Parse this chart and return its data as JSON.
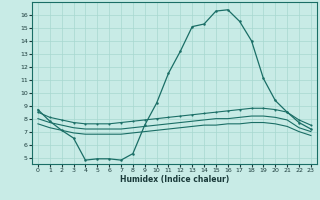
{
  "xlabel": "Humidex (Indice chaleur)",
  "background_color": "#c8ebe6",
  "grid_color": "#a8d8d0",
  "line_color": "#1a6e66",
  "xlim": [
    -0.5,
    23.5
  ],
  "ylim": [
    4.5,
    17.0
  ],
  "xticks": [
    0,
    1,
    2,
    3,
    4,
    5,
    6,
    7,
    8,
    9,
    10,
    11,
    12,
    13,
    14,
    15,
    16,
    17,
    18,
    19,
    20,
    21,
    22,
    23
  ],
  "yticks": [
    5,
    6,
    7,
    8,
    9,
    10,
    11,
    12,
    13,
    14,
    15,
    16
  ],
  "line1_x": [
    0,
    1,
    2,
    3,
    4,
    5,
    6,
    7,
    8,
    9,
    10,
    11,
    12,
    13,
    14,
    15,
    16,
    17,
    18,
    19,
    20,
    21,
    22,
    23
  ],
  "line1_y": [
    8.7,
    7.8,
    7.1,
    6.5,
    4.8,
    4.9,
    4.9,
    4.8,
    5.3,
    7.5,
    9.2,
    11.5,
    13.2,
    15.1,
    15.3,
    16.3,
    16.4,
    15.5,
    14.0,
    11.1,
    9.4,
    8.5,
    7.7,
    7.2
  ],
  "line2_x": [
    0,
    1,
    2,
    3,
    4,
    5,
    6,
    7,
    8,
    9,
    10,
    11,
    12,
    13,
    14,
    15,
    16,
    17,
    18,
    19,
    20,
    21,
    22,
    23
  ],
  "line2_y": [
    8.5,
    8.1,
    7.9,
    7.7,
    7.6,
    7.6,
    7.6,
    7.7,
    7.8,
    7.9,
    8.0,
    8.1,
    8.2,
    8.3,
    8.4,
    8.5,
    8.6,
    8.7,
    8.8,
    8.8,
    8.7,
    8.5,
    7.9,
    7.5
  ],
  "line3_x": [
    0,
    1,
    2,
    3,
    4,
    5,
    6,
    7,
    8,
    9,
    10,
    11,
    12,
    13,
    14,
    15,
    16,
    17,
    18,
    19,
    20,
    21,
    22,
    23
  ],
  "line3_y": [
    8.0,
    7.7,
    7.5,
    7.3,
    7.2,
    7.2,
    7.2,
    7.2,
    7.3,
    7.4,
    7.5,
    7.6,
    7.7,
    7.8,
    7.9,
    8.0,
    8.0,
    8.1,
    8.2,
    8.2,
    8.1,
    7.9,
    7.3,
    7.0
  ],
  "line4_x": [
    0,
    1,
    2,
    3,
    4,
    5,
    6,
    7,
    8,
    9,
    10,
    11,
    12,
    13,
    14,
    15,
    16,
    17,
    18,
    19,
    20,
    21,
    22,
    23
  ],
  "line4_y": [
    7.6,
    7.3,
    7.1,
    6.9,
    6.8,
    6.8,
    6.8,
    6.8,
    6.9,
    7.0,
    7.1,
    7.2,
    7.3,
    7.4,
    7.5,
    7.5,
    7.6,
    7.6,
    7.7,
    7.7,
    7.6,
    7.4,
    7.0,
    6.7
  ]
}
